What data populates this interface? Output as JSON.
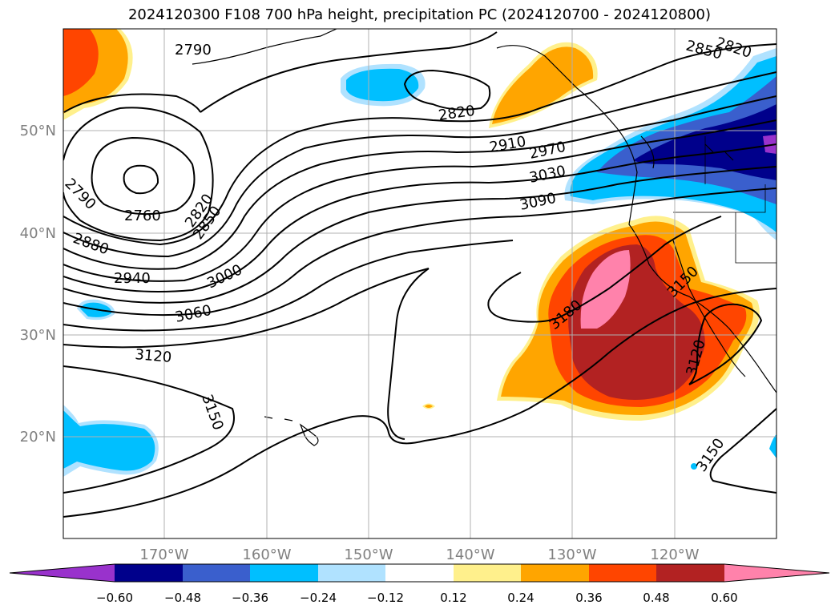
{
  "title": "2024120300 F108 700 hPa height, precipitation PC (2024120700 - 2024120800)",
  "lat_labels": [
    "50°N",
    "40°N",
    "30°N",
    "20°N"
  ],
  "lon_labels": [
    "170°W",
    "160°W",
    "150°W",
    "140°W",
    "130°W",
    "120°W"
  ],
  "colorbar": {
    "tick_labels": [
      "−0.60",
      "−0.48",
      "−0.36",
      "−0.24",
      "−0.12",
      "0.12",
      "0.24",
      "0.36",
      "0.48",
      "0.60"
    ],
    "colors": [
      "#9932cc",
      "#00008b",
      "#3a5fcd",
      "#00bfff",
      "#b0e2ff",
      "#ffffff",
      "#fff08c",
      "#ffa500",
      "#ff4500",
      "#b22222",
      "#ff82ab"
    ]
  },
  "contour_labels": [
    "2790",
    "2820",
    "2850",
    "2820",
    "2910",
    "2970",
    "3030",
    "3090",
    "2790",
    "2760",
    "2820",
    "2850",
    "2880",
    "2940",
    "3000",
    "3060",
    "3120",
    "3150",
    "3180",
    "3150",
    "3120",
    "3150"
  ]
}
